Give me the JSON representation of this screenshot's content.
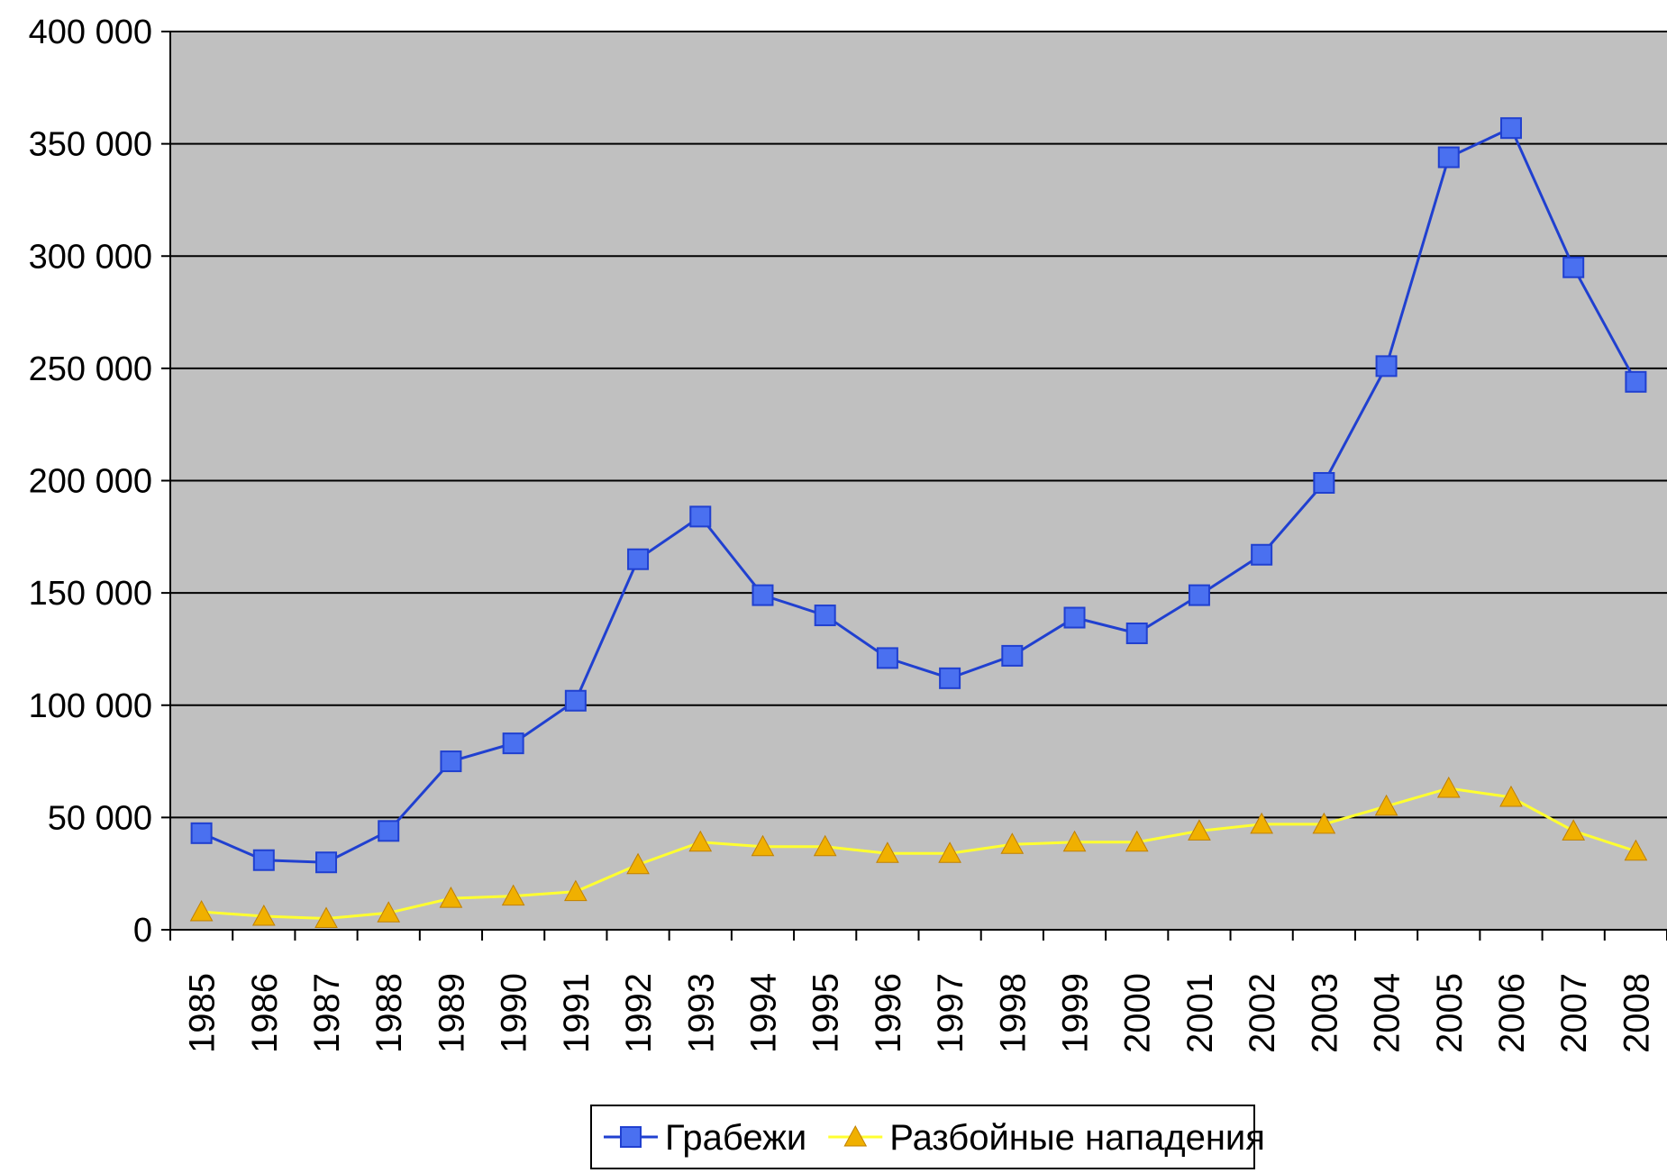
{
  "chart_data": {
    "type": "line",
    "categories": [
      "1985",
      "1986",
      "1987",
      "1988",
      "1989",
      "1990",
      "1991",
      "1992",
      "1993",
      "1994",
      "1995",
      "1996",
      "1997",
      "1998",
      "1999",
      "2000",
      "2001",
      "2002",
      "2003",
      "2004",
      "2005",
      "2006",
      "2007",
      "2008"
    ],
    "series": [
      {
        "name": "Грабежи",
        "color": "#2040d0",
        "marker": "square",
        "marker_color": "#4a70f0",
        "values": [
          43000,
          31000,
          30000,
          44000,
          75000,
          83000,
          102000,
          165000,
          184000,
          149000,
          140000,
          121000,
          112000,
          122000,
          139000,
          132000,
          149000,
          167000,
          199000,
          251000,
          344000,
          357000,
          295000,
          244000
        ]
      },
      {
        "name": "Разбойные нападения",
        "color": "#ffff30",
        "marker": "triangle",
        "marker_color": "#f0b000",
        "values": [
          8000,
          6000,
          5000,
          7500,
          14000,
          15000,
          17000,
          29000,
          39000,
          37000,
          37000,
          34000,
          34000,
          38000,
          39000,
          39000,
          44000,
          47000,
          47000,
          55000,
          63000,
          59000,
          44000,
          35000
        ]
      }
    ],
    "ylim": [
      0,
      400000
    ],
    "yticks": [
      0,
      {
        "value": 50000,
        "label": "50 000"
      },
      {
        "value": 100000,
        "label": "100 000"
      },
      {
        "value": 150000,
        "label": "150 000"
      },
      {
        "value": 200000,
        "label": "200 000"
      },
      {
        "value": 250000,
        "label": "250 000"
      },
      {
        "value": 300000,
        "label": "300 000"
      },
      {
        "value": 350000,
        "label": "350 000"
      },
      {
        "value": 400000,
        "label": "400 000"
      }
    ],
    "grid": true,
    "legend": "bottom",
    "plot_background": "#c0c0c0"
  }
}
